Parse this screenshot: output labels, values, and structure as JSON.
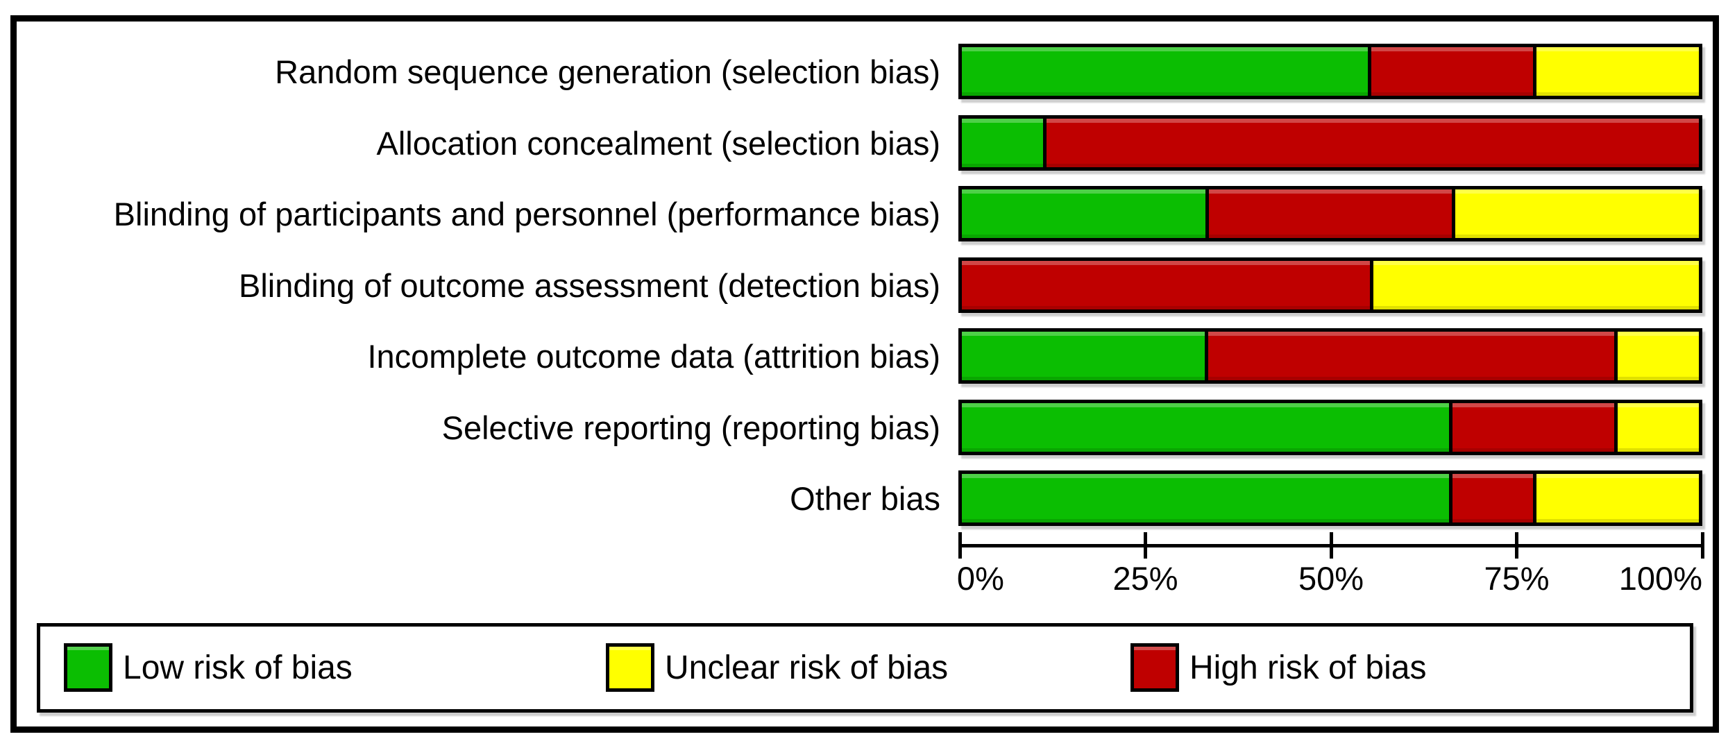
{
  "chart_data": {
    "type": "bar",
    "stacked": true,
    "orientation": "horizontal",
    "title": "",
    "xlabel": "",
    "ylabel": "",
    "xlim": [
      0,
      100
    ],
    "x_ticks": [
      "0%",
      "25%",
      "50%",
      "75%",
      "100%"
    ],
    "grid": false,
    "legend_position": "bottom",
    "categories": [
      "Random sequence generation (selection bias)",
      "Allocation concealment (selection bias)",
      "Blinding of participants and personnel (performance bias)",
      "Blinding of outcome assessment (detection bias)",
      "Incomplete outcome data (attrition bias)",
      "Selective reporting (reporting bias)",
      "Other bias"
    ],
    "series": [
      {
        "name": "Low risk of bias",
        "color_key": "low",
        "values": [
          55.6,
          11.1,
          33.3,
          0,
          33.3,
          66.7,
          66.7
        ]
      },
      {
        "name": "High risk of bias",
        "color_key": "high",
        "values": [
          22.2,
          88.9,
          33.3,
          55.6,
          55.6,
          22.2,
          11.1
        ]
      },
      {
        "name": "Unclear risk of bias",
        "color_key": "unclear",
        "values": [
          22.2,
          0,
          33.3,
          44.4,
          11.1,
          11.1,
          22.2
        ]
      }
    ]
  },
  "colors": {
    "low": "#0bbe02",
    "high": "#bf0000",
    "unclear": "#ffff00",
    "border": "#000000"
  },
  "legend": {
    "items": [
      {
        "label": "Low risk of bias",
        "color_key": "low"
      },
      {
        "label": "Unclear risk of bias",
        "color_key": "unclear"
      },
      {
        "label": "High risk of bias",
        "color_key": "high"
      }
    ]
  }
}
